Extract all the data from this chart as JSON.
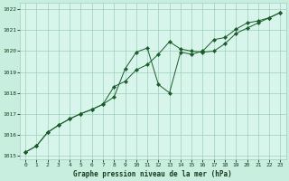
{
  "title": "Graphe pression niveau de la mer (hPa)",
  "background_color": "#c8eee0",
  "plot_bg_color": "#d8f5ec",
  "grid_color": "#9dcfba",
  "line_color": "#1a5c2a",
  "marker_color": "#1a5c2a",
  "xlim": [
    -0.5,
    23.5
  ],
  "ylim": [
    1014.8,
    1022.3
  ],
  "xticks": [
    0,
    1,
    2,
    3,
    4,
    5,
    6,
    7,
    8,
    9,
    10,
    11,
    12,
    13,
    14,
    15,
    16,
    17,
    18,
    19,
    20,
    21,
    22,
    23
  ],
  "yticks": [
    1015,
    1016,
    1017,
    1018,
    1019,
    1020,
    1021,
    1022
  ],
  "series1_x": [
    0,
    1,
    2,
    3,
    4,
    5,
    6,
    7,
    8,
    9,
    10,
    11,
    12,
    13,
    14,
    15,
    16,
    17,
    18,
    19,
    20,
    21,
    22,
    23
  ],
  "series1_y": [
    1015.15,
    1015.45,
    1016.1,
    1016.45,
    1016.75,
    1017.0,
    1017.2,
    1017.45,
    1018.3,
    1018.55,
    1019.1,
    1019.35,
    1019.85,
    1020.45,
    1020.1,
    1020.0,
    1019.95,
    1020.0,
    1020.35,
    1020.85,
    1021.1,
    1021.35,
    1021.6,
    1021.85
  ],
  "series2_x": [
    0,
    1,
    2,
    3,
    4,
    5,
    6,
    7,
    8,
    9,
    10,
    11,
    12,
    13,
    14,
    15,
    16,
    17,
    18,
    19,
    20,
    21,
    22,
    23
  ],
  "series2_y": [
    1015.15,
    1015.45,
    1016.1,
    1016.45,
    1016.75,
    1017.0,
    1017.2,
    1017.45,
    1017.8,
    1019.15,
    1019.95,
    1020.15,
    1018.4,
    1018.0,
    1019.95,
    1019.85,
    1020.0,
    1020.55,
    1020.65,
    1021.05,
    1021.35,
    1021.45,
    1021.6,
    1021.85
  ]
}
